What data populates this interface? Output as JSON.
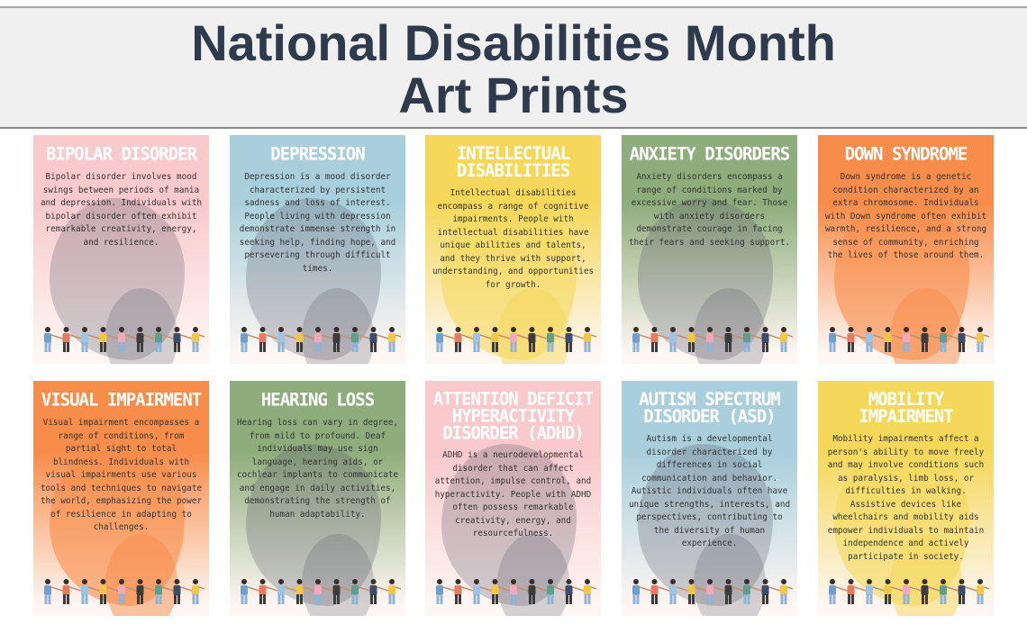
{
  "header": {
    "line1": "National Disabilities Month",
    "line2": "Art Prints"
  },
  "cards": [
    {
      "title": "Bipolar Disorder",
      "text": "Bipolar disorder involves mood swings between periods of mania and depression. Individuals with bipolar disorder often exhibit remarkable creativity, energy, and resilience.",
      "color": "#f9c9cc"
    },
    {
      "title": "Depression",
      "text": "Depression is a mood disorder characterized by persistent sadness and loss of interest. People living with depression demonstrate immense strength in seeking help, finding hope, and persevering through difficult times.",
      "color": "#a9cfdc"
    },
    {
      "title": "Intellectual Disabilities",
      "text": "Intellectual disabilities encompass a range of cognitive impairments. People with intellectual disabilities have unique abilities and talents, and they thrive with support, understanding, and opportunities for growth.",
      "color": "#f5d85a"
    },
    {
      "title": "Anxiety Disorders",
      "text": "Anxiety disorders encompass a range of conditions marked by excessive worry and fear. Those with anxiety disorders demonstrate courage in facing their fears and seeking support.",
      "color": "#8fad7c"
    },
    {
      "title": "Down Syndrome",
      "text": "Down syndrome is a genetic condition characterized by an extra chromosome. Individuals with Down syndrome often exhibit warmth, resilience, and a strong sense of community, enriching the lives of those around them.",
      "color": "#f88c4a"
    },
    {
      "title": "Visual Impairment",
      "text": "Visual impairment encompasses a range of conditions, from partial sight to total blindness. Individuals with visual impairments use various tools and techniques to navigate the world, emphasizing the power of resilience in adapting to challenges.",
      "color": "#f88c4a"
    },
    {
      "title": "Hearing Loss",
      "text": "Hearing loss can vary in degree, from mild to profound. Deaf individuals may use sign language, hearing aids, or cochlear implants to communicate and engage in daily activities, demonstrating the strength of human adaptability.",
      "color": "#8fad7c"
    },
    {
      "title": "Attention Deficit Hyperactivity Disorder (ADHD)",
      "text": "ADHD is a neurodevelopmental disorder that can affect attention, impulse control, and hyperactivity. People with ADHD often possess remarkable creativity, energy, and resourcefulness.",
      "color": "#f9c9cc"
    },
    {
      "title": "Autism Spectrum Disorder (ASD)",
      "text": "Autism is a developmental disorder characterized by differences in social communication and behavior. Autistic individuals often have unique strengths, interests, and perspectives, contributing to the diversity of human experience.",
      "color": "#a9cfdc"
    },
    {
      "title": "Mobility Impairment",
      "text": "Mobility impairments affect a person's ability to move freely and may involve conditions such as paralysis, limb loss, or difficulties in walking. Assistive devices like wheelchairs and mobility aids empower individuals to maintain independence and actively participate in society.",
      "color": "#f5d85a"
    }
  ],
  "people_colors": [
    "#6f9fcf",
    "#e77a63",
    "#9dc4e6",
    "#f2c744",
    "#f3a9b7",
    "#3c3c3c",
    "#5f9e8a",
    "#3b4d6b",
    "#f2c744"
  ]
}
